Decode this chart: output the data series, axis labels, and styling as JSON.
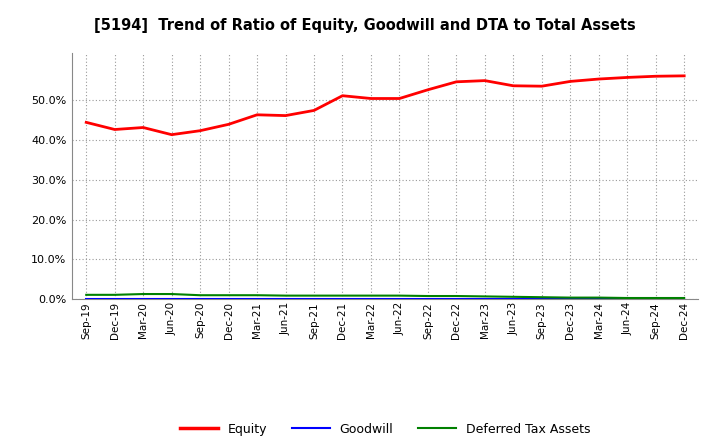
{
  "title": "[5194]  Trend of Ratio of Equity, Goodwill and DTA to Total Assets",
  "x_labels": [
    "Sep-19",
    "Dec-19",
    "Mar-20",
    "Jun-20",
    "Sep-20",
    "Dec-20",
    "Mar-21",
    "Jun-21",
    "Sep-21",
    "Dec-21",
    "Mar-22",
    "Jun-22",
    "Sep-22",
    "Dec-22",
    "Mar-23",
    "Jun-23",
    "Sep-23",
    "Dec-23",
    "Mar-24",
    "Jun-24",
    "Sep-24",
    "Dec-24"
  ],
  "equity": [
    0.445,
    0.427,
    0.432,
    0.414,
    0.424,
    0.44,
    0.464,
    0.462,
    0.475,
    0.512,
    0.505,
    0.505,
    0.527,
    0.547,
    0.55,
    0.537,
    0.536,
    0.548,
    0.554,
    0.558,
    0.561,
    0.562
  ],
  "goodwill": [
    0.0,
    0.0,
    0.0,
    0.0,
    0.0,
    0.0,
    0.0,
    0.0,
    0.0,
    0.0,
    0.0,
    0.0,
    0.0,
    0.0,
    0.0,
    0.0,
    0.0,
    0.0,
    0.0,
    0.0,
    0.0,
    0.0
  ],
  "dta": [
    0.011,
    0.011,
    0.013,
    0.013,
    0.01,
    0.01,
    0.01,
    0.009,
    0.009,
    0.009,
    0.009,
    0.009,
    0.008,
    0.008,
    0.007,
    0.006,
    0.005,
    0.004,
    0.004,
    0.003,
    0.003,
    0.003
  ],
  "equity_color": "#ff0000",
  "goodwill_color": "#0000ff",
  "dta_color": "#008000",
  "background_color": "#ffffff",
  "grid_color": "#999999",
  "ylim": [
    0.0,
    0.62
  ],
  "yticks": [
    0.0,
    0.1,
    0.2,
    0.3,
    0.4,
    0.5
  ],
  "legend_labels": [
    "Equity",
    "Goodwill",
    "Deferred Tax Assets"
  ]
}
